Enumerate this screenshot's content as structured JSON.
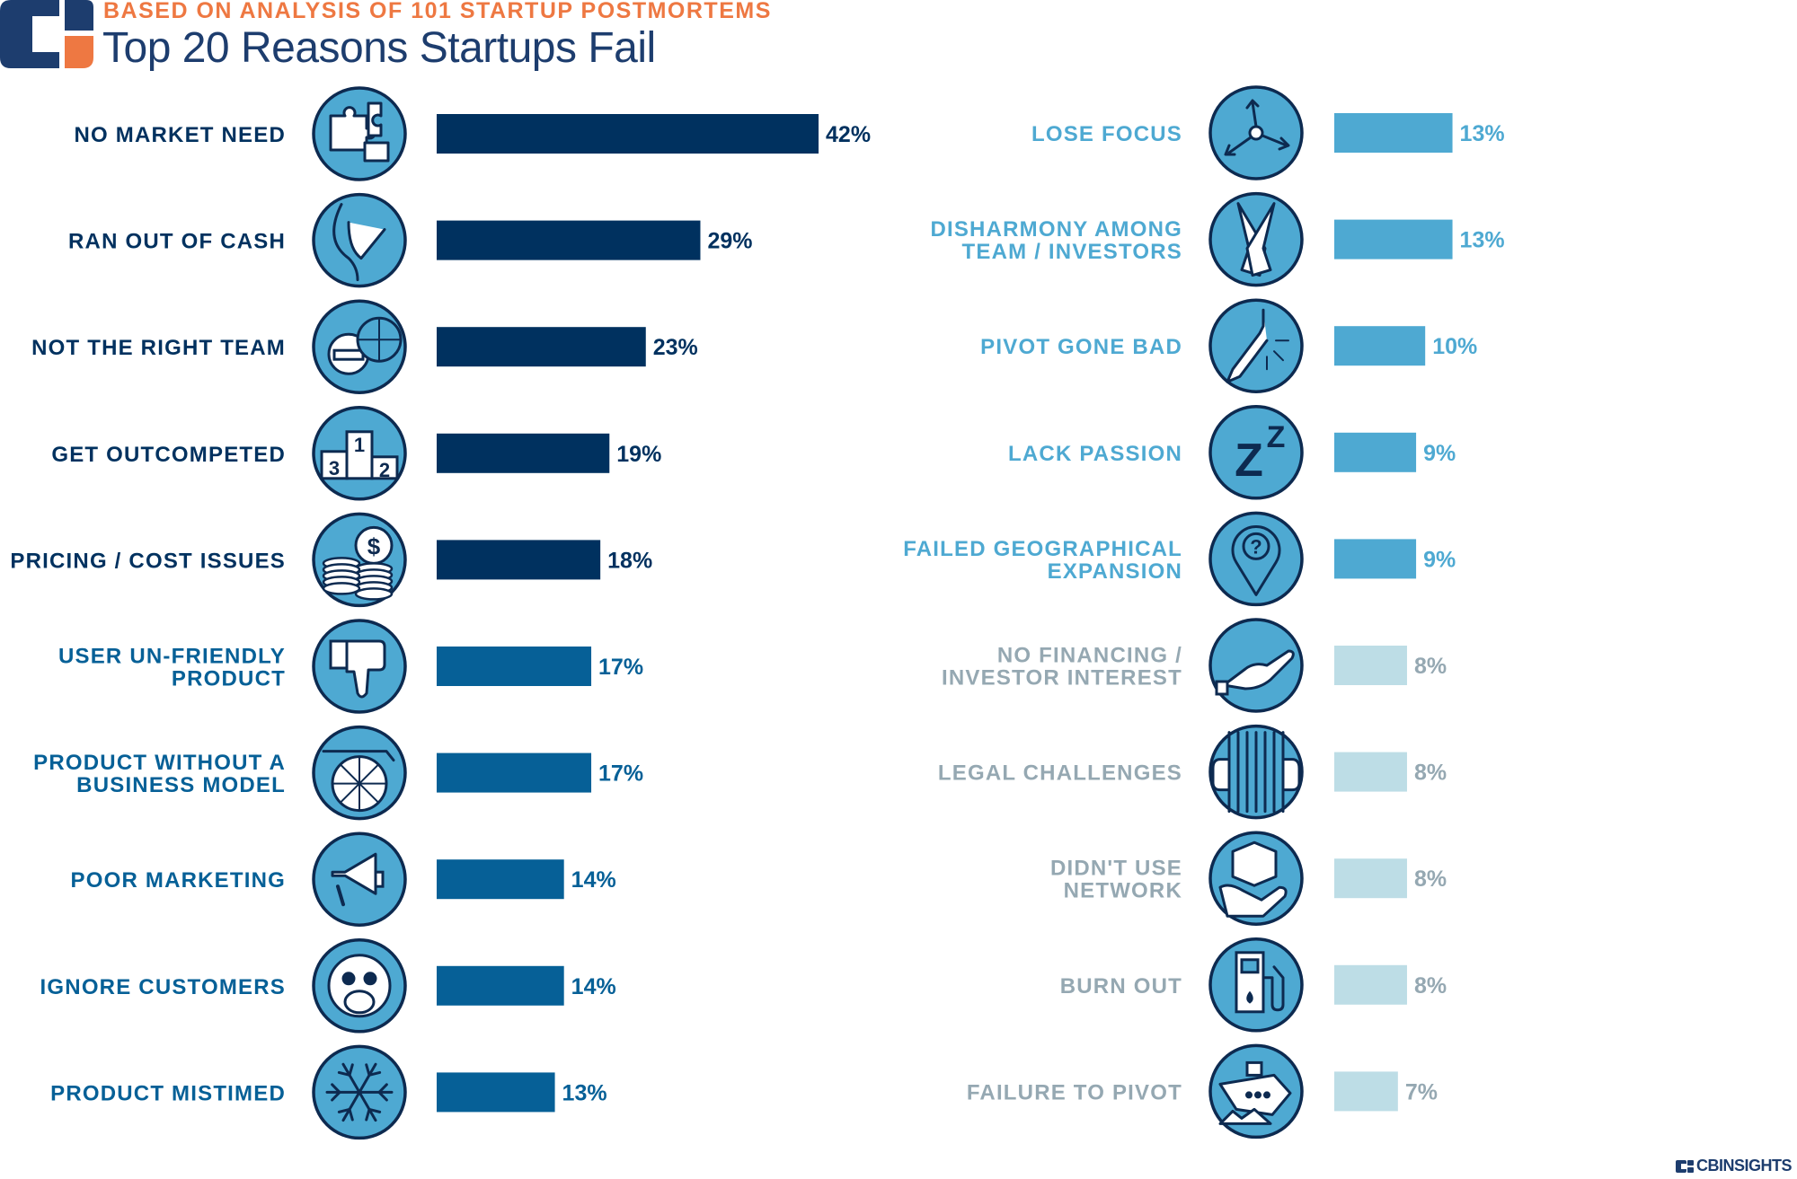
{
  "header": {
    "subtitle": "BASED ON ANALYSIS OF 101 STARTUP POSTMORTEMS",
    "title": "Top 20 Reasons Startups Fail"
  },
  "footer": {
    "brand": "CBINSIGHTS"
  },
  "colors": {
    "orange": "#ee7842",
    "navy": "#00315f",
    "title": "#1d3d6e",
    "blue": "#066097",
    "light": "#4ea9d2",
    "pale": "#bddde6",
    "gray": "#95a8b2",
    "icon_fill": "#4ea9d2",
    "icon_stroke": "#0d2a50"
  },
  "chart_data": {
    "type": "bar",
    "title": "Top 20 Reasons Startups Fail",
    "subtitle": "BASED ON ANALYSIS OF 101 STARTUP POSTMORTEMS",
    "unit": "%",
    "columns": [
      {
        "name": "left",
        "items": [
          {
            "label": [
              "NO MARKET NEED"
            ],
            "value": 42,
            "tier": "navy",
            "icon": "puzzle-icon"
          },
          {
            "label": [
              "RAN OUT OF CASH"
            ],
            "value": 29,
            "tier": "navy",
            "icon": "empty-pocket-icon"
          },
          {
            "label": [
              "NOT THE RIGHT TEAM"
            ],
            "value": 23,
            "tier": "navy",
            "icon": "team-member-icon"
          },
          {
            "label": [
              "GET OUTCOMPETED"
            ],
            "value": 19,
            "tier": "navy",
            "icon": "podium-icon"
          },
          {
            "label": [
              "PRICING / COST ISSUES"
            ],
            "value": 18,
            "tier": "navy",
            "icon": "coins-icon"
          },
          {
            "label": [
              "USER UN-FRIENDLY",
              "PRODUCT"
            ],
            "value": 17,
            "tier": "blue",
            "icon": "thumbs-down-icon"
          },
          {
            "label": [
              "PRODUCT WITHOUT A",
              "BUSINESS MODEL"
            ],
            "value": 17,
            "tier": "blue",
            "icon": "cart-wheel-icon"
          },
          {
            "label": [
              "POOR MARKETING"
            ],
            "value": 14,
            "tier": "blue",
            "icon": "megaphone-icon"
          },
          {
            "label": [
              "IGNORE CUSTOMERS"
            ],
            "value": 14,
            "tier": "blue",
            "icon": "monkey-icon"
          },
          {
            "label": [
              "PRODUCT MISTIMED"
            ],
            "value": 13,
            "tier": "blue",
            "icon": "snowflake-icon"
          }
        ]
      },
      {
        "name": "right",
        "items": [
          {
            "label": [
              "LOSE FOCUS"
            ],
            "value": 13,
            "tier": "light",
            "icon": "diverging-arrows-icon"
          },
          {
            "label": [
              "DISHARMONY AMONG",
              "TEAM / INVESTORS"
            ],
            "value": 13,
            "tier": "light",
            "icon": "oars-icon"
          },
          {
            "label": [
              "PIVOT GONE BAD"
            ],
            "value": 10,
            "tier": "light",
            "icon": "broken-pencil-icon"
          },
          {
            "label": [
              "LACK PASSION"
            ],
            "value": 9,
            "tier": "light",
            "icon": "sleep-zz-icon"
          },
          {
            "label": [
              "FAILED GEOGRAPHICAL",
              "EXPANSION"
            ],
            "value": 9,
            "tier": "light",
            "icon": "map-pin-question-icon"
          },
          {
            "label": [
              "NO FINANCING /",
              "INVESTOR INTEREST"
            ],
            "value": 8,
            "tier": "pale",
            "icon": "open-hand-icon"
          },
          {
            "label": [
              "LEGAL CHALLENGES"
            ],
            "value": 8,
            "tier": "pale",
            "icon": "jail-bars-icon"
          },
          {
            "label": [
              "DIDN'T USE",
              "NETWORK"
            ],
            "value": 8,
            "tier": "pale",
            "icon": "box-in-hands-icon"
          },
          {
            "label": [
              "BURN OUT"
            ],
            "value": 8,
            "tier": "pale",
            "icon": "fuel-pump-icon"
          },
          {
            "label": [
              "FAILURE TO PIVOT"
            ],
            "value": 7,
            "tier": "pale",
            "icon": "ship-iceberg-icon"
          }
        ]
      }
    ]
  }
}
